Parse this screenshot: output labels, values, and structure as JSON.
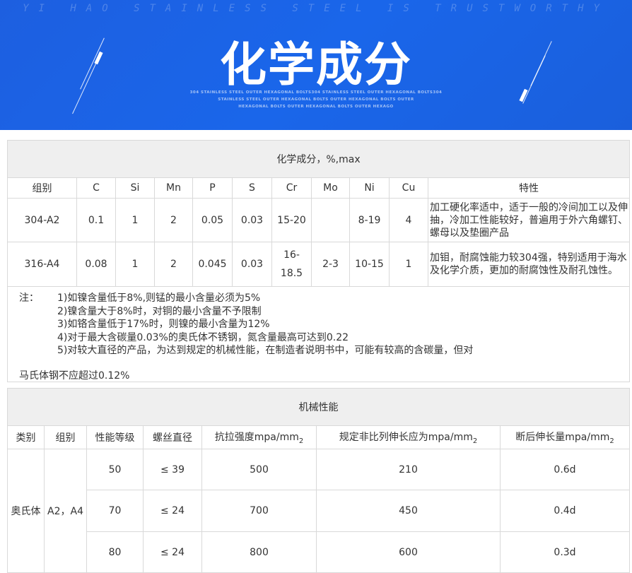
{
  "banner": {
    "tagline": "YI HAO STAINLESS STEEL IS TRUSTWORTHY",
    "title": "化学成分",
    "subtext": [
      "304 STAINLESS STEEL OUTER HEXAGONAL BOLTS304 STAINLESS STEEL OUTER HEXAGONAL BOLTS304",
      "STAINLESS STEEL OUTER HEXAGONAL BOLTS OUTER HEXAGONAL BOLTS OUTER",
      "HEXAGONAL BOLTS OUTER HEXAGONAL BOLTS OUTER HEXAGO"
    ]
  },
  "chem": {
    "title": "化学成分，%,max",
    "headers": [
      "组别",
      "C",
      "Si",
      "Mn",
      "P",
      "S",
      "Cr",
      "Mo",
      "Ni",
      "Cu",
      "特性"
    ],
    "rows": [
      [
        "304-A2",
        "0.1",
        "1",
        "2",
        "0.05",
        "0.03",
        "15-20",
        "",
        "8-19",
        "4",
        "加工硬化率适中，适于一般的冷间加工以及伸抽，冷加工性能较好，普遍用于外六角螺钉、螺母以及垫圈产品"
      ],
      [
        "316-A4",
        "0.08",
        "1",
        "2",
        "0.045",
        "0.03",
        "16-18.5",
        "2-3",
        "10-15",
        "1",
        "加钼，耐腐蚀能力较304强，特别适用于海水及化学介质，更加的耐腐蚀性及耐孔蚀性。"
      ]
    ],
    "notes_label": "注：",
    "notes": [
      "1)如镍含量低于8%,则锰的最小含量必须为5%",
      "2)镍含量大于8%时，对铜的最小含量不予限制",
      "3)如铬含量低于17%时，则镍的最小含量为12%",
      "4)对于最大含碳量0.03%的奥氏体不锈钢，氮含量最高可达到0.22",
      "5)对较大直径的产品，为达到规定的机械性能，在制造者说明书中，可能有较高的含碳量，但对"
    ],
    "notes_cont": "马氏体钢不应超过0.12%"
  },
  "mech": {
    "title": "机械性能",
    "headers": [
      "类别",
      "组别",
      "性能等级",
      "螺丝直径",
      "抗拉强度mpa/mm",
      "规定非比列伸长应为mpa/mm",
      "断后伸长量mpa/mm"
    ],
    "unit_sub": "2",
    "category": "奥氏体",
    "group": "A2，A4",
    "rows": [
      [
        "50",
        "≤ 39",
        "500",
        "210",
        "0.6d"
      ],
      [
        "70",
        "≤ 24",
        "700",
        "450",
        "0.4d"
      ],
      [
        "80",
        "≤ 24",
        "800",
        "600",
        "0.3d"
      ]
    ]
  }
}
